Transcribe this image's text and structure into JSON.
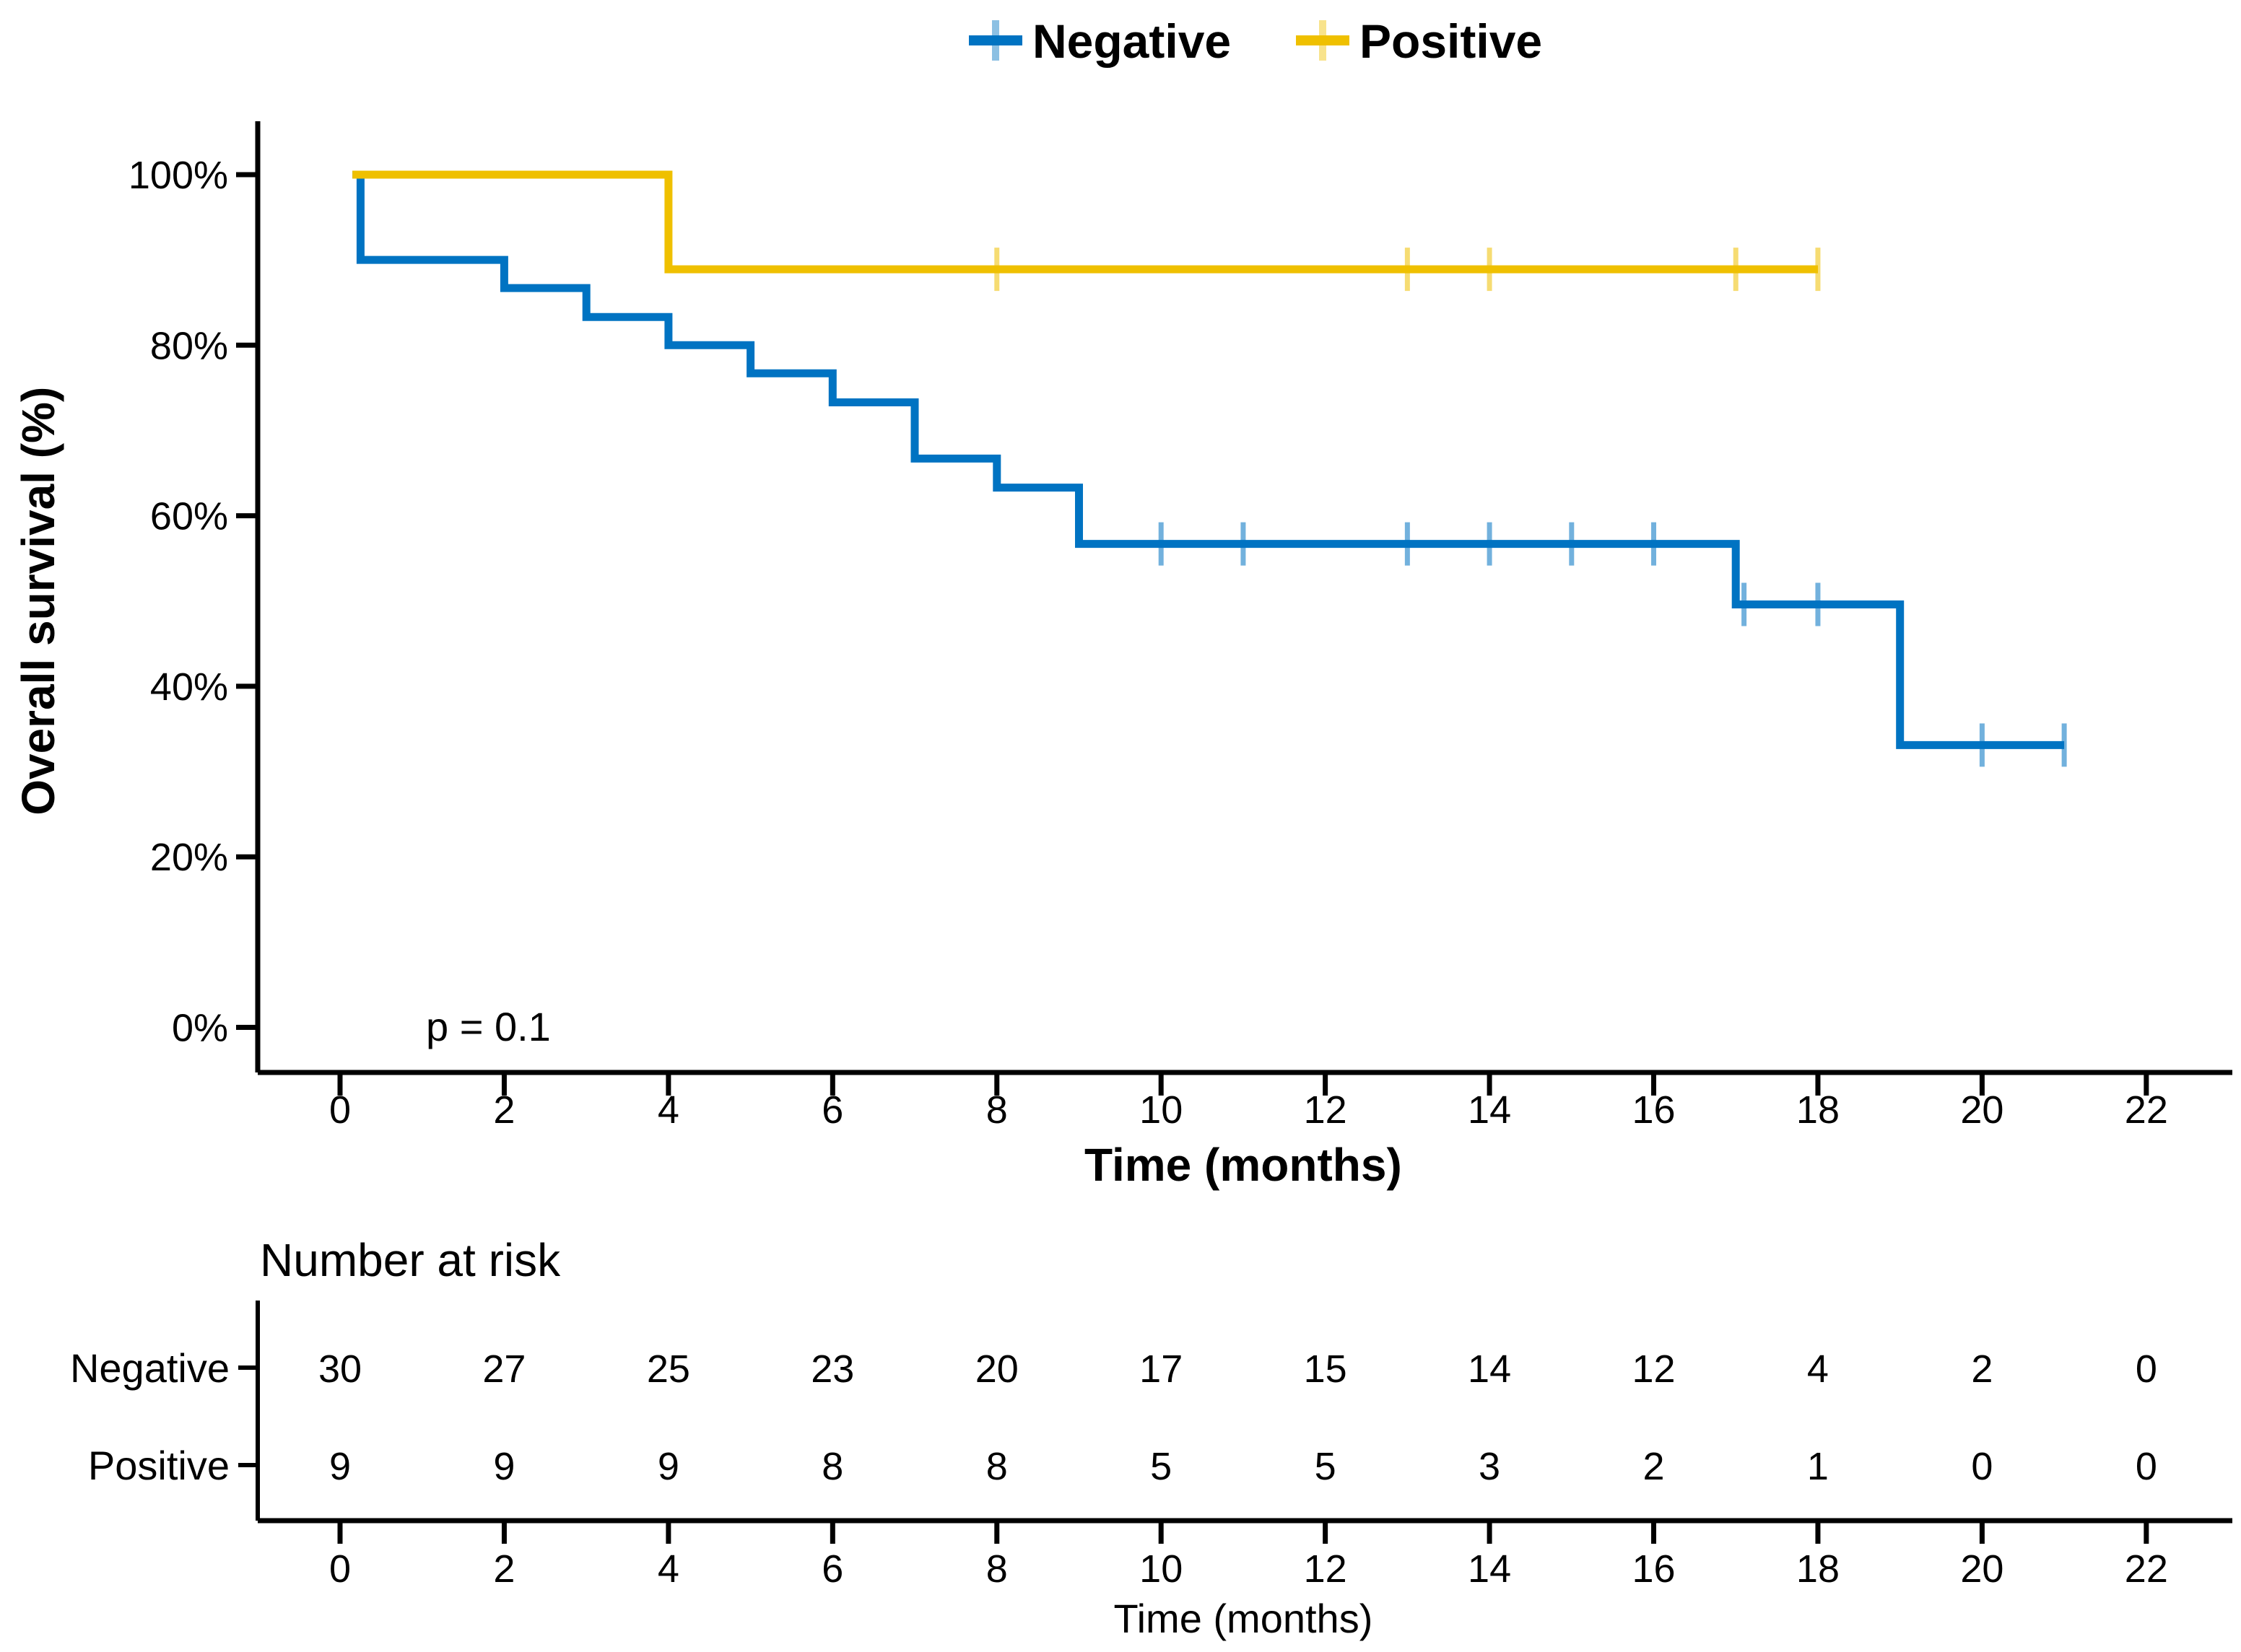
{
  "chart_data": {
    "type": "line",
    "subtype": "kaplan-meier-step",
    "xlabel": "Time (months)",
    "ylabel": "Overall survival (%)",
    "annotation": "p = 0.1",
    "grid": false,
    "legend_position": "top",
    "xlim": [
      -1,
      23
    ],
    "ylim": [
      0,
      105
    ],
    "x_ticks": [
      0,
      2,
      4,
      6,
      8,
      10,
      12,
      14,
      16,
      18,
      20,
      22
    ],
    "y_ticks": [
      {
        "value": 0,
        "label": "0%"
      },
      {
        "value": 20,
        "label": "20%"
      },
      {
        "value": 40,
        "label": "40%"
      },
      {
        "value": 60,
        "label": "60%"
      },
      {
        "value": 80,
        "label": "80%"
      },
      {
        "value": 100,
        "label": "100%"
      }
    ],
    "series": [
      {
        "name": "Negative",
        "color": "#0073C2",
        "censor_color_opacity": 0.55,
        "start_t": 0.15,
        "start_value": 100,
        "steps": [
          [
            0.25,
            90.0
          ],
          [
            2,
            86.7
          ],
          [
            3,
            83.3
          ],
          [
            4,
            80.0
          ],
          [
            5,
            76.7
          ],
          [
            6,
            73.3
          ],
          [
            7,
            66.7
          ],
          [
            8,
            63.3
          ],
          [
            9,
            56.7
          ],
          [
            17,
            49.6
          ],
          [
            19,
            33.1
          ]
        ],
        "end_t": 21,
        "censors": [
          [
            10,
            56.7
          ],
          [
            11,
            56.7
          ],
          [
            13,
            56.7
          ],
          [
            14,
            56.7
          ],
          [
            15,
            56.7
          ],
          [
            16,
            56.7
          ],
          [
            17.1,
            49.6
          ],
          [
            18,
            49.6
          ],
          [
            20,
            33.1
          ],
          [
            21,
            33.1
          ]
        ]
      },
      {
        "name": "Positive",
        "color": "#EFC000",
        "censor_color_opacity": 0.55,
        "start_t": 0.15,
        "start_value": 100,
        "steps": [
          [
            4,
            88.9
          ]
        ],
        "end_t": 18,
        "censors": [
          [
            8,
            88.9
          ],
          [
            13,
            88.9
          ],
          [
            14,
            88.9
          ],
          [
            17,
            88.9
          ],
          [
            18,
            88.9
          ]
        ]
      }
    ],
    "risk_table": {
      "title": "Number at risk",
      "xlabel": "Time (months)",
      "times": [
        0,
        2,
        4,
        6,
        8,
        10,
        12,
        14,
        16,
        18,
        20,
        22
      ],
      "rows": [
        {
          "label": "Negative",
          "color": "#0073C2",
          "values": [
            30,
            27,
            25,
            23,
            20,
            17,
            15,
            14,
            12,
            4,
            2,
            0
          ]
        },
        {
          "label": "Positive",
          "color": "#EFC000",
          "values": [
            9,
            9,
            9,
            8,
            8,
            5,
            5,
            3,
            2,
            1,
            0,
            0
          ]
        }
      ]
    }
  }
}
